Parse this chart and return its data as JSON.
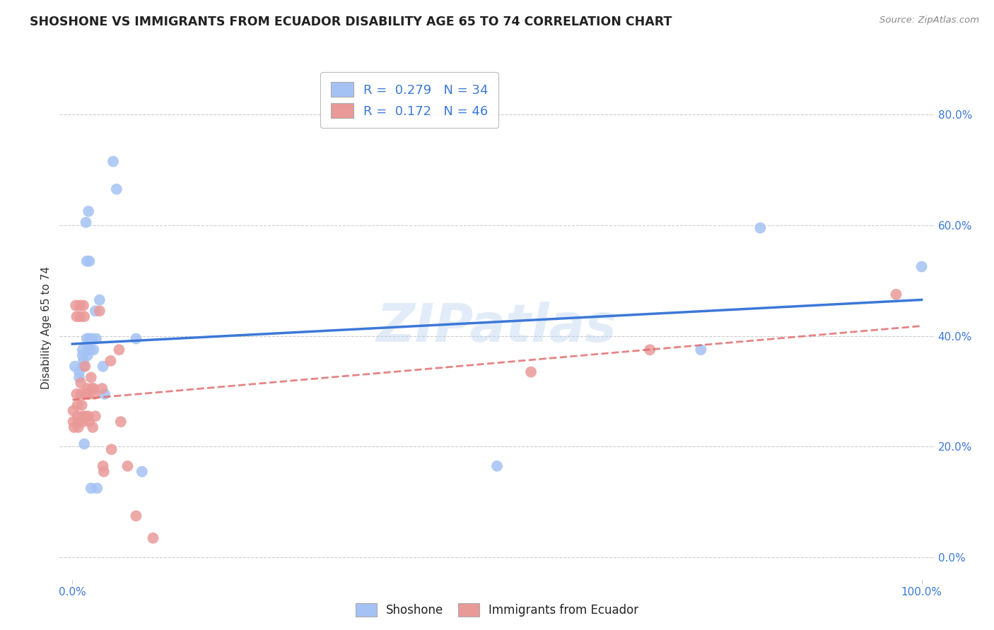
{
  "title": "SHOSHONE VS IMMIGRANTS FROM ECUADOR DISABILITY AGE 65 TO 74 CORRELATION CHART",
  "source": "Source: ZipAtlas.com",
  "ylabel": "Disability Age 65 to 74",
  "yticks": [
    0.0,
    0.2,
    0.4,
    0.6,
    0.8
  ],
  "ytick_labels": [
    "0.0%",
    "20.0%",
    "40.0%",
    "60.0%",
    "80.0%"
  ],
  "blue_color": "#a4c2f4",
  "blue_line_color": "#3c78d8",
  "pink_color": "#ea9999",
  "pink_line_color": "#e06666",
  "R_blue": 0.279,
  "N_blue": 34,
  "R_pink": 0.172,
  "N_pink": 46,
  "legend_label_blue": "Shoshone",
  "legend_label_pink": "Immigrants from Ecuador",
  "watermark": "ZIPatlas",
  "blue_x": [
    0.003,
    0.008,
    0.008,
    0.012,
    0.012,
    0.013,
    0.013,
    0.014,
    0.016,
    0.017,
    0.017,
    0.018,
    0.018,
    0.019,
    0.02,
    0.02,
    0.021,
    0.022,
    0.023,
    0.025,
    0.027,
    0.028,
    0.029,
    0.032,
    0.036,
    0.038,
    0.048,
    0.052,
    0.075,
    0.082,
    0.5,
    0.74,
    0.81,
    1.0
  ],
  "blue_y": [
    0.345,
    0.335,
    0.325,
    0.375,
    0.365,
    0.355,
    0.345,
    0.205,
    0.605,
    0.535,
    0.395,
    0.375,
    0.365,
    0.625,
    0.535,
    0.395,
    0.375,
    0.125,
    0.395,
    0.375,
    0.445,
    0.395,
    0.125,
    0.465,
    0.345,
    0.295,
    0.715,
    0.665,
    0.395,
    0.155,
    0.165,
    0.375,
    0.595,
    0.525
  ],
  "pink_x": [
    0.001,
    0.001,
    0.002,
    0.004,
    0.005,
    0.005,
    0.006,
    0.006,
    0.007,
    0.007,
    0.009,
    0.009,
    0.01,
    0.01,
    0.011,
    0.012,
    0.012,
    0.013,
    0.014,
    0.015,
    0.015,
    0.016,
    0.018,
    0.019,
    0.019,
    0.02,
    0.022,
    0.023,
    0.024,
    0.025,
    0.026,
    0.027,
    0.032,
    0.035,
    0.036,
    0.037,
    0.045,
    0.046,
    0.055,
    0.057,
    0.065,
    0.075,
    0.095,
    0.54,
    0.68,
    0.97
  ],
  "pink_y": [
    0.265,
    0.245,
    0.235,
    0.455,
    0.435,
    0.295,
    0.275,
    0.255,
    0.245,
    0.235,
    0.455,
    0.435,
    0.315,
    0.295,
    0.275,
    0.255,
    0.245,
    0.455,
    0.435,
    0.345,
    0.295,
    0.255,
    0.305,
    0.295,
    0.255,
    0.245,
    0.325,
    0.305,
    0.235,
    0.305,
    0.295,
    0.255,
    0.445,
    0.305,
    0.165,
    0.155,
    0.355,
    0.195,
    0.375,
    0.245,
    0.165,
    0.075,
    0.035,
    0.335,
    0.375,
    0.475
  ]
}
